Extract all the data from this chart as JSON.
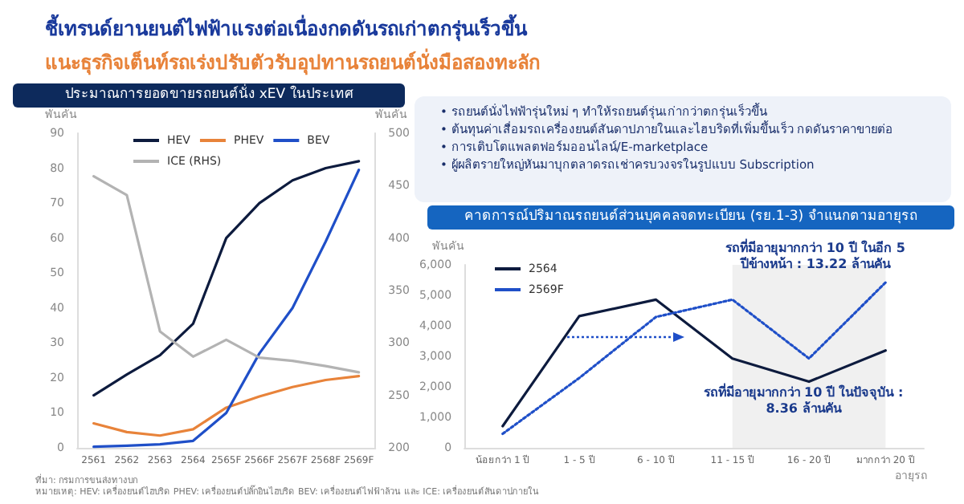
{
  "chart_data": [
    {
      "type": "other",
      "title": "ชี้เทรนด์ยานยนต์ไฟฟ้าแรงต่อเนื่องกดดันรถเก่าตกรุ่นเร็วขึ้น",
      "subtitle": "แนะธุรกิจเต็นท์รถเร่งปรับตัวรับอุปทานรถยนต์นั่งมือสองทะลัก"
    },
    {
      "type": "line",
      "title": "ประมาณการยอดขายรถยนต์นั่ง xEV ในประเทศ",
      "ylabel": "พันคัน",
      "y2label": "พันคัน",
      "categories": [
        "2561",
        "2562",
        "2563",
        "2564",
        "2565F",
        "2566F",
        "2567F",
        "2568F",
        "2569F"
      ],
      "series": [
        {
          "name": "HEV",
          "color": "#0d1b3e",
          "values": [
            15,
            21,
            26.5,
            35.5,
            60,
            70,
            76.5,
            80,
            82
          ]
        },
        {
          "name": "PHEV",
          "color": "#e8833a",
          "values": [
            7,
            4.5,
            3.5,
            5.3,
            11.5,
            14.7,
            17.4,
            19.4,
            20.5
          ]
        },
        {
          "name": "BEV",
          "color": "#1f4fc8",
          "values": [
            0.3,
            0.6,
            1,
            2,
            10,
            27,
            40,
            59,
            79.5
          ]
        },
        {
          "name": "ICE (RHS)",
          "color": "#b3b3b3",
          "axis": "y2",
          "values": [
            459,
            441,
            311,
            287,
            303,
            286,
            283,
            278,
            272
          ]
        }
      ],
      "ylim": [
        0,
        90
      ],
      "yticks": [
        0,
        10,
        20,
        30,
        40,
        50,
        60,
        70,
        80,
        90
      ],
      "y2lim": [
        200,
        500
      ],
      "y2ticks": [
        200,
        250,
        300,
        350,
        400,
        450,
        500
      ],
      "legend": "top",
      "annotations": [
        "ที่มา: กรมการขนส่งทางบก",
        "หมายเหตุ: HEV: เครื่องยนต์ไฮบริด PHEV: เครื่องยนต์ปลั๊กอินไฮบริด BEV: เครื่องยนต์ไฟฟ้าล้วน และ ICE: เครื่องยนต์สันดาปภายใน"
      ]
    },
    {
      "type": "other",
      "annotations": [
        "• รถยนต์นั่งไฟฟ้ารุ่นใหม่ ๆ ทำให้รถยนต์รุ่นเก่ากว่าตกรุ่นเร็วขึ้น",
        "• ต้นทุนค่าเสื่อมรถเครื่องยนต์สันดาปภายในและไฮบริดที่เพิ่มขึ้นเร็ว กดดันราคาขายต่อ",
        "• การเติบโตแพลตฟอร์มออนไลน์/E-marketplace",
        "• ผู้ผลิตรายใหญ่หันมาบุกตลาดรถเช่าครบวงจรในรูปแบบ Subscription"
      ]
    },
    {
      "type": "line",
      "title": "คาดการณ์ปริมาณรถยนต์ส่วนบุคคลจดทะเบียน (รย.1-3) จำแนกตามอายุรถ",
      "ylabel": "พันคัน",
      "xlabel": "อายุรถ",
      "categories": [
        "น้อยกว่า 1 ปี",
        "1 - 5 ปี",
        "6 - 10 ปี",
        "11 - 15 ปี",
        "16 - 20 ปี",
        "มากกว่า 20 ปี"
      ],
      "series": [
        {
          "name": "2564",
          "color": "#0d1b3e",
          "values": [
            710,
            4320,
            4860,
            2930,
            2170,
            3190
          ]
        },
        {
          "name": "2569F",
          "color": "#1f4fc8",
          "line_style": "dotted",
          "values": [
            460,
            2290,
            4290,
            4860,
            2930,
            5420
          ]
        }
      ],
      "ylim": [
        0,
        6000
      ],
      "yticks": [
        {
          "value": 0,
          "label": "0"
        },
        {
          "value": 1000,
          "label": "1,000"
        },
        {
          "value": 2000,
          "label": "2,000"
        },
        {
          "value": 3000,
          "label": "3,000"
        },
        {
          "value": 4000,
          "label": "4,000"
        },
        {
          "value": 5000,
          "label": "5,000"
        },
        {
          "value": 6000,
          "label": "6,000"
        }
      ],
      "bands": [
        {
          "axis": "x",
          "from": "11 - 15 ปี",
          "to": "มากกว่า 20 ปี",
          "color": "#f0f0f0"
        }
      ],
      "legend": "top left",
      "annotations": [
        "รถที่มีอายุมากกว่า 10 ปี ในอีก 5 ปีข้างหน้า : 13.22 ล้านคัน",
        "รถที่มีอายุมากกว่า 10 ปี ในปัจจุบัน : 8.36 ล้านคัน"
      ]
    }
  ]
}
